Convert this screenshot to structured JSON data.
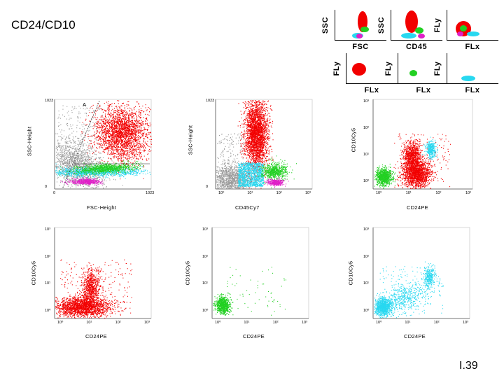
{
  "slide": {
    "title": "CD24/CD10",
    "page": "I.39"
  },
  "colors": {
    "red": "#f20000",
    "green": "#22d022",
    "cyan": "#28d8f0",
    "magenta": "#e020c8",
    "gray": "#9a9a9a"
  },
  "thumbnails": [
    {
      "ylabel": "SSC",
      "xlabel": "FSC"
    },
    {
      "ylabel": "SSC",
      "xlabel": "CD45"
    },
    {
      "ylabel": "FLy",
      "xlabel": "FLx"
    },
    {
      "ylabel": "FLy",
      "xlabel": "FLx"
    },
    {
      "ylabel": "FLy",
      "xlabel": "FLx"
    },
    {
      "ylabel": "FLy",
      "xlabel": "FLx"
    }
  ],
  "chart_data": [
    {
      "type": "scatter",
      "xlabel": "FSC-Height",
      "ylabel": "SSC-Height",
      "xticks": [
        "0",
        "1023"
      ],
      "yticks": [
        "0",
        "1023"
      ],
      "gate_label": "A",
      "populations": [
        "gray",
        "red",
        "green",
        "cyan",
        "magenta"
      ]
    },
    {
      "type": "scatter",
      "xlabel": "CD45Cy7",
      "ylabel": "SSC-Height",
      "xticks": [
        "10⁰",
        "10¹",
        "10²",
        "10³"
      ],
      "yticks": [
        "0",
        "1023"
      ],
      "populations": [
        "gray",
        "red",
        "cyan",
        "green",
        "magenta"
      ]
    },
    {
      "type": "scatter",
      "xlabel": "CD24PE",
      "ylabel": "CD10Cy5",
      "xticks": [
        "10⁰",
        "10¹",
        "10²",
        "10³"
      ],
      "yticks": [
        "10⁰",
        "10¹",
        "10²",
        "10³"
      ],
      "populations": [
        "green",
        "red",
        "cyan"
      ]
    },
    {
      "type": "scatter",
      "xlabel": "CD24PE",
      "ylabel": "CD10Cy5",
      "xticks": [
        "10⁰",
        "10¹",
        "10²",
        "10³"
      ],
      "yticks": [
        "10⁰",
        "10¹",
        "10²",
        "10³"
      ],
      "populations": [
        "red"
      ]
    },
    {
      "type": "scatter",
      "xlabel": "CD24PE",
      "ylabel": "CD10Cy5",
      "xticks": [
        "10⁰",
        "10¹",
        "10²",
        "10³"
      ],
      "yticks": [
        "10⁰",
        "10¹",
        "10²",
        "10³"
      ],
      "populations": [
        "green"
      ]
    },
    {
      "type": "scatter",
      "xlabel": "CD24PE",
      "ylabel": "CD10Cy5",
      "xticks": [
        "10⁰",
        "10¹",
        "10²",
        "10³"
      ],
      "yticks": [
        "10⁰",
        "10¹",
        "10²",
        "10³"
      ],
      "populations": [
        "cyan"
      ]
    }
  ]
}
